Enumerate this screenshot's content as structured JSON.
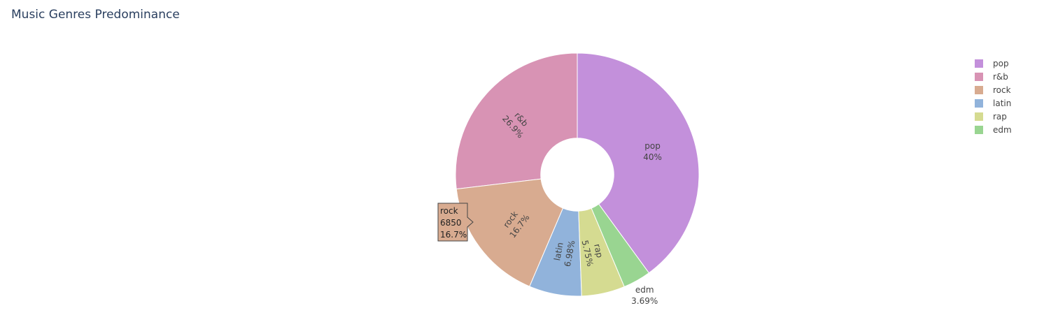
{
  "chart_data": {
    "type": "pie",
    "title": "Music Genres Predominance",
    "categories": [
      "pop",
      "r&b",
      "rock",
      "latin",
      "rap",
      "edm"
    ],
    "values": [
      40,
      26.9,
      16.7,
      6.98,
      5.75,
      3.69
    ],
    "value_labels": [
      "40%",
      "26.9%",
      "16.7%",
      "6.98%",
      "5.75%",
      "3.69%"
    ],
    "colors": [
      "#c390db",
      "#d893b4",
      "#d8ab90",
      "#91b3db",
      "#d5db91",
      "#99d591"
    ],
    "hole": 0.3,
    "legend": "top-right",
    "hover": {
      "category": "rock",
      "count": 6850,
      "percent_label": "16.7%"
    }
  }
}
